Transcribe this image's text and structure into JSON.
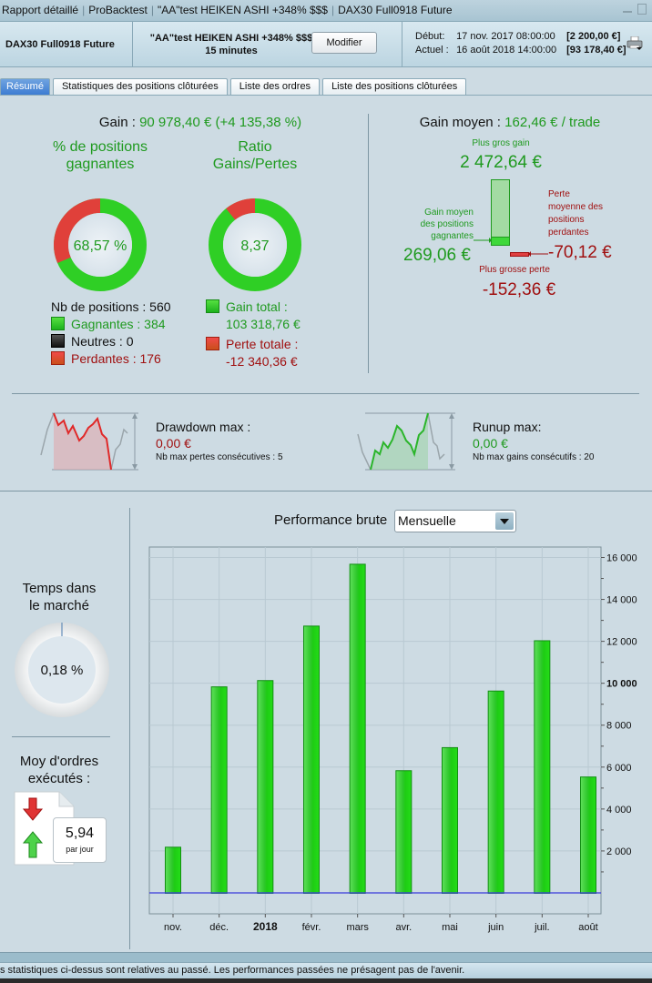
{
  "window": {
    "title_parts": [
      "Rapport détaillé",
      "ProBacktest",
      "\"AA\"test HEIKEN ASHI +348% $$$",
      "DAX30 Full0918 Future"
    ]
  },
  "header": {
    "instrument": "DAX30 Full0918 Future",
    "strategy_name": "\"AA\"test HEIKEN ASHI +348% $$$",
    "timeframe": "15 minutes",
    "modify_label": "Modifier",
    "start_label": "Début:",
    "start_date": "17 nov. 2017 08:00:00",
    "start_value": "[2 200,00 €]",
    "current_label": "Actuel :",
    "current_date": "16 août 2018 14:00:00",
    "current_value": "[93 178,40 €]",
    "print_icon": "printer-icon"
  },
  "tabs": [
    {
      "label": "Résumé",
      "active": true
    },
    {
      "label": "Statistiques des positions clôturées",
      "active": false
    },
    {
      "label": "Liste des ordres",
      "active": false
    },
    {
      "label": "Liste des positions clôturées",
      "active": false
    }
  ],
  "summary": {
    "gain_label": "Gain :",
    "gain_value": "90 978,40 € (+4 135,38 %)",
    "winning_pct_title": "% de positions gagnantes",
    "winning_pct_value": "68,57 %",
    "winning_pct": 68.57,
    "ratio_title": "Ratio Gains/Pertes",
    "ratio_value": "8,37",
    "ratio_gain_share": 0.893,
    "nb_positions": "Nb de positions : 560",
    "winners": "Gagnantes : 384",
    "neutral": "Neutres : 0",
    "losers": "Perdantes : 176",
    "total_gain_label": "Gain total :",
    "total_gain_value": "103 318,76 €",
    "total_loss_label": "Perte totale :",
    "total_loss_value": "-12 340,36 €"
  },
  "average": {
    "label": "Gain moyen :",
    "value": "162,46 € / trade",
    "biggest_gain_label": "Plus gros gain",
    "biggest_gain_value": "2 472,64 €",
    "avg_win_label_1": "Gain moyen",
    "avg_win_label_2": "des positions",
    "avg_win_label_3": "gagnantes",
    "avg_win_value": "269,06 €",
    "avg_loss_label_1": "Perte",
    "avg_loss_label_2": "moyenne des",
    "avg_loss_label_3": "positions",
    "avg_loss_label_4": "perdantes",
    "avg_loss_value": "-70,12 €",
    "biggest_loss_label": "Plus grosse perte",
    "biggest_loss_value": "-152,36 €"
  },
  "drawdown": {
    "title": "Drawdown max :",
    "value": "0,00 €",
    "sub": "Nb max pertes consécutives : 5"
  },
  "runup": {
    "title": "Runup max:",
    "value": "0,00 €",
    "sub": "Nb max gains consécutifs : 20"
  },
  "market_time": {
    "title_1": "Temps dans",
    "title_2": "le marché",
    "value": "0,18 %",
    "pct": 0.18
  },
  "orders": {
    "title_1": "Moy d'ordres",
    "title_2": "exécutés :",
    "value": "5,94",
    "unit": "par jour"
  },
  "performance": {
    "label": "Performance brute",
    "period_selected": "Mensuelle"
  },
  "chart_data": {
    "type": "bar",
    "title": "Performance brute",
    "categories": [
      "nov.",
      "déc.",
      "2018",
      "févr.",
      "mars",
      "avr.",
      "mai",
      "juin",
      "juil.",
      "août"
    ],
    "bold_categories": [
      "2018"
    ],
    "values": [
      2200,
      9850,
      10150,
      12750,
      15700,
      5850,
      6950,
      9650,
      12050,
      5550
    ],
    "ylim": [
      -1000,
      16500
    ],
    "yticks": [
      2000,
      4000,
      6000,
      8000,
      10000,
      12000,
      14000,
      16000
    ],
    "ytick_labels": [
      "2 000",
      "4 000",
      "6 000",
      "8 000",
      "10 000",
      "12 000",
      "14 000",
      "16 000"
    ],
    "bold_ytick": "10 000",
    "yaxis_side": "right",
    "grid": true,
    "bar_color": "#22cc1a",
    "zero_line_color": "#3a3adc"
  },
  "footer": {
    "disclaimer": "s statistiques ci-dessus sont relatives au passé. Les performances passées ne présagent pas de l'avenir."
  }
}
